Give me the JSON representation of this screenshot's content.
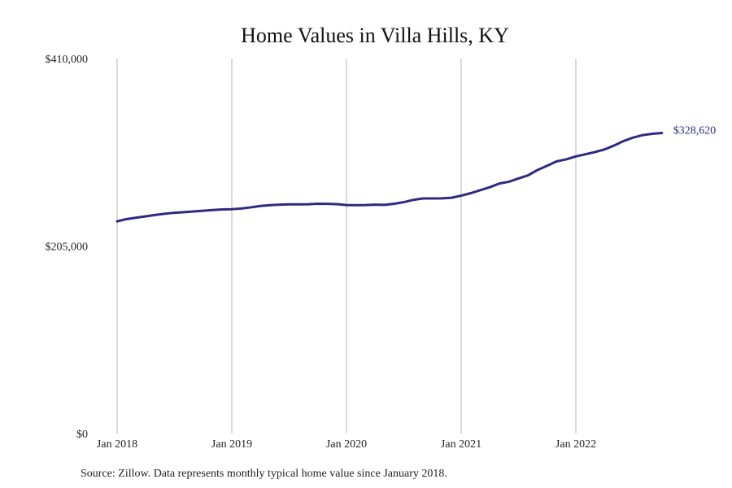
{
  "chart_data": {
    "type": "line",
    "title": "Home Values in Villa Hills, KY",
    "xlabel": "",
    "ylabel": "",
    "ylim": [
      0,
      410000
    ],
    "y_ticks": [
      {
        "value": 0,
        "label": "$0"
      },
      {
        "value": 205000,
        "label": "$205,000"
      },
      {
        "value": 410000,
        "label": "$410,000"
      }
    ],
    "x_ticks": [
      {
        "value": 0,
        "label": "Jan 2018"
      },
      {
        "value": 12,
        "label": "Jan 2019"
      },
      {
        "value": 24,
        "label": "Jan 2020"
      },
      {
        "value": 36,
        "label": "Jan 2021"
      },
      {
        "value": 48,
        "label": "Jan 2022"
      }
    ],
    "grid": "vertical",
    "line_color": "#2e2a80",
    "series": [
      {
        "values": [
          232000,
          234500,
          236000,
          237500,
          239000,
          240300,
          241400,
          242000,
          242800,
          243600,
          244400,
          245000,
          245300,
          246000,
          247300,
          248800,
          249700,
          250300,
          250600,
          250600,
          250700,
          251200,
          251100,
          250800,
          249800,
          249700,
          249800,
          250300,
          250000,
          251200,
          253000,
          255500,
          257000,
          257000,
          257100,
          257800,
          260100,
          262800,
          266100,
          269300,
          273400,
          275300,
          278900,
          282300,
          288200,
          292800,
          297600,
          299800,
          303000,
          305300,
          307800,
          310600,
          314900,
          319800,
          323600,
          326300,
          327700,
          328620
        ],
        "end_label": "$328,620"
      }
    ],
    "source": "Source: Zillow. Data represents monthly typical home value since January 2018."
  }
}
